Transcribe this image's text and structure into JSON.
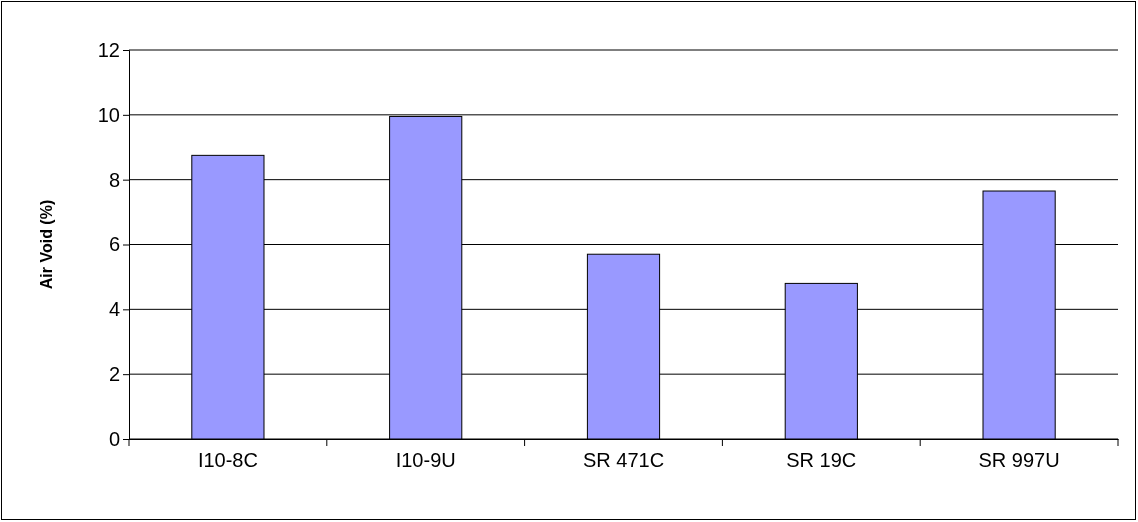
{
  "chart_data": {
    "type": "bar",
    "ylabel": "Air Void (%)",
    "categories": [
      "I10-8C",
      "I10-9U",
      "SR 471C",
      "SR 19C",
      "SR 997U"
    ],
    "values": [
      8.75,
      9.95,
      5.7,
      4.8,
      7.65
    ],
    "color": "#9999ff",
    "ylim": [
      0,
      12
    ],
    "yticks": [
      0,
      2,
      4,
      6,
      8,
      10,
      12
    ],
    "grid": "y"
  }
}
